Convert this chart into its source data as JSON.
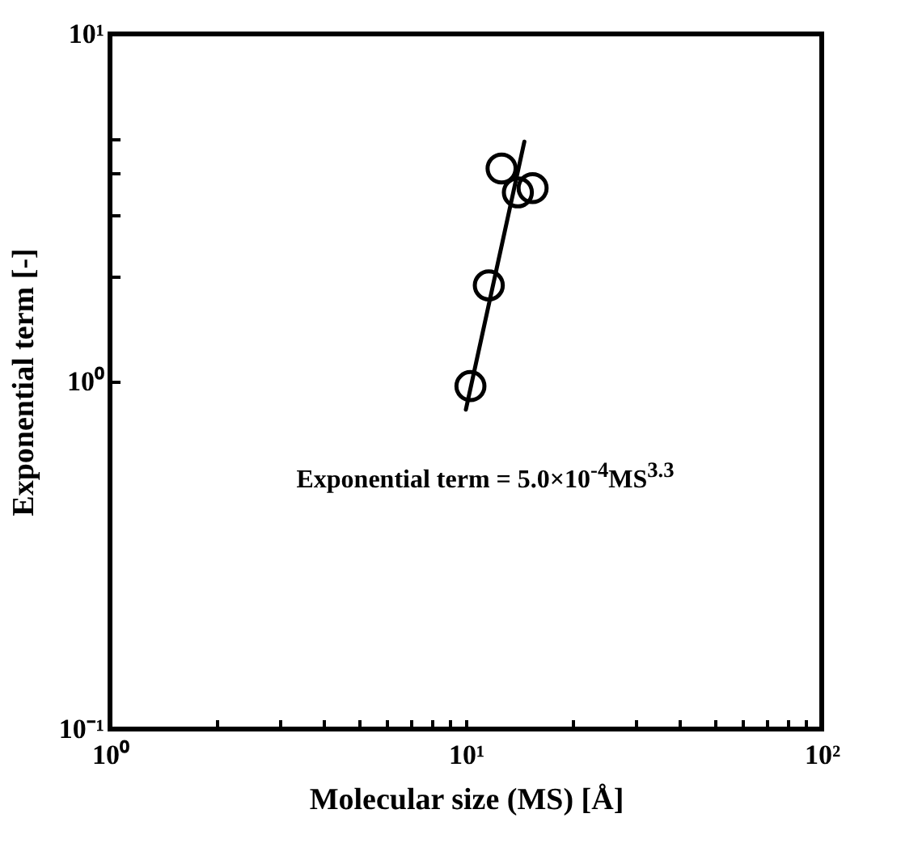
{
  "chart_data": {
    "type": "scatter",
    "xlabel": "Molecular size (MS)   [Å]",
    "ylabel": "Exponential term   [-]",
    "annotations": [
      "Exponential term = 5.0×10$^{-4}$MS$^{3.3}$"
    ],
    "log": "xy",
    "grid": false,
    "marker": "circle",
    "xlim": [
      1,
      100
    ],
    "ylim": [
      0.1,
      10
    ],
    "xticks": [
      {
        "value": 1,
        "label": "10⁰"
      },
      {
        "value": 2,
        "label": null
      },
      {
        "value": 3,
        "label": null
      },
      {
        "value": 4,
        "label": null
      },
      {
        "value": 5,
        "label": null
      },
      {
        "value": 6,
        "label": null
      },
      {
        "value": 7,
        "label": null
      },
      {
        "value": 8,
        "label": null
      },
      {
        "value": 9,
        "label": null
      },
      {
        "value": 10,
        "label": "10¹"
      },
      {
        "value": 20,
        "label": null
      },
      {
        "value": 30,
        "label": null
      },
      {
        "value": 40,
        "label": null
      },
      {
        "value": 50,
        "label": null
      },
      {
        "value": 60,
        "label": null
      },
      {
        "value": 70,
        "label": null
      },
      {
        "value": 80,
        "label": null
      },
      {
        "value": 90,
        "label": null
      },
      {
        "value": 100,
        "label": "10²"
      }
    ],
    "yticks": [
      {
        "value": 0.1,
        "label": "10⁻¹"
      },
      {
        "value": 1,
        "label": "10⁰"
      },
      {
        "value": 2,
        "label": null
      },
      {
        "value": 3,
        "label": null
      },
      {
        "value": 4,
        "label": null
      },
      {
        "value": 5,
        "label": null
      },
      {
        "value": 10,
        "label": "10¹"
      }
    ],
    "series": [
      {
        "color": "#000000",
        "x": [
          10.3,
          11.6,
          12.6,
          14.0,
          15.4
        ],
        "values": [
          0.97,
          1.89,
          4.1,
          3.5,
          3.6
        ]
      },
      {
        "type": "line",
        "marker": "none",
        "color": "#000000",
        "x": [
          10.0,
          14.6
        ],
        "values": [
          0.83,
          4.9
        ]
      }
    ]
  }
}
